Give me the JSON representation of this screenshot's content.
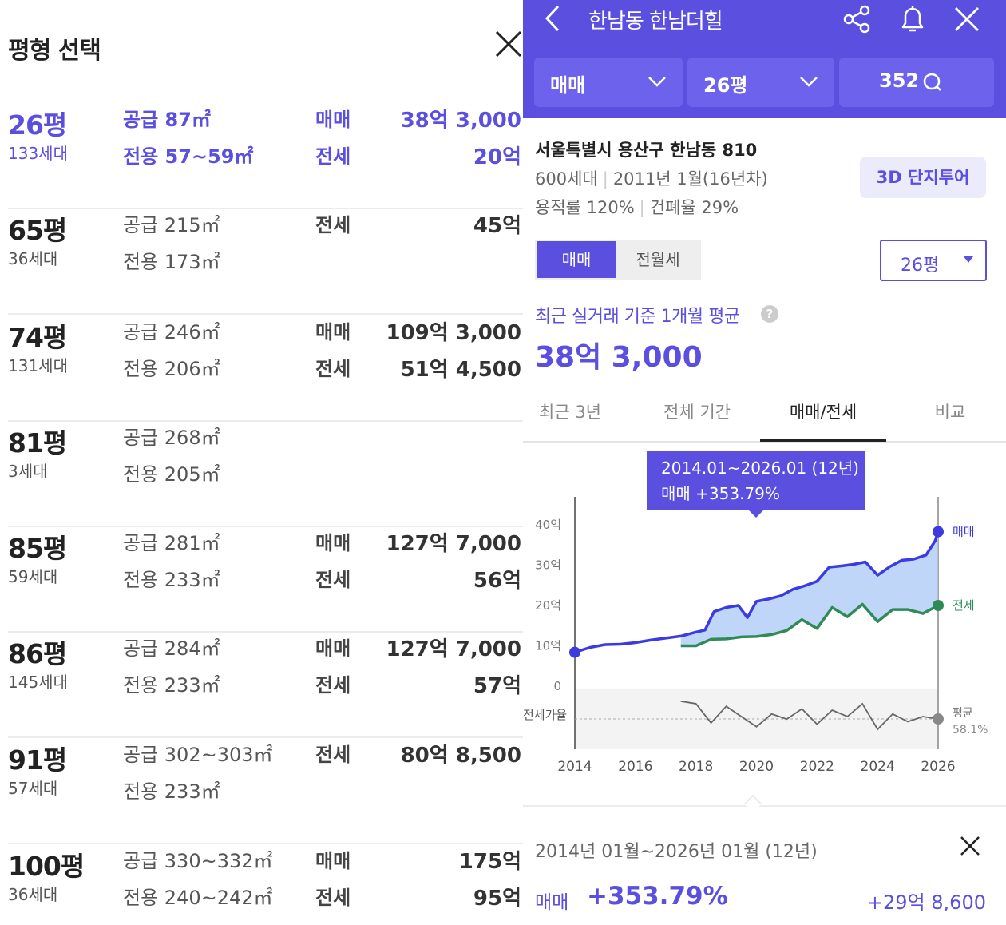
{
  "left_panel": {
    "title": "평형 선택",
    "rows": [
      {
        "pyeong": "26평",
        "households": "133세대",
        "supply": "공급 87㎡",
        "exclusive": "전용 57~59㎡",
        "label1": "매매",
        "value1": "38억 3,000",
        "label2": "전세",
        "value2": "20억",
        "selected": true
      },
      {
        "pyeong": "65평",
        "households": "36세대",
        "supply": "공급 215㎡",
        "exclusive": "전용 173㎡",
        "label1": "전세",
        "value1": "45억",
        "label2": "",
        "value2": "",
        "selected": false
      },
      {
        "pyeong": "74평",
        "households": "131세대",
        "supply": "공급 246㎡",
        "exclusive": "전용 206㎡",
        "label1": "매매",
        "value1": "109억 3,000",
        "label2": "전세",
        "value2": "51억 4,500",
        "selected": false
      },
      {
        "pyeong": "81평",
        "households": "3세대",
        "supply": "공급 268㎡",
        "exclusive": "전용 205㎡",
        "label1": "",
        "value1": "",
        "label2": "",
        "value2": "",
        "selected": false
      },
      {
        "pyeong": "85평",
        "households": "59세대",
        "supply": "공급 281㎡",
        "exclusive": "전용 233㎡",
        "label1": "매매",
        "value1": "127억 7,000",
        "label2": "전세",
        "value2": "56억",
        "selected": false
      },
      {
        "pyeong": "86평",
        "households": "145세대",
        "supply": "공급 284㎡",
        "exclusive": "전용 233㎡",
        "label1": "매매",
        "value1": "127억 7,000",
        "label2": "전세",
        "value2": "57억",
        "selected": false
      },
      {
        "pyeong": "91평",
        "households": "57세대",
        "supply": "공급 302~303㎡",
        "exclusive": "전용 233㎡",
        "label1": "전세",
        "value1": "80억 8,500",
        "label2": "",
        "value2": "",
        "selected": false
      },
      {
        "pyeong": "100평",
        "households": "36세대",
        "supply": "공급 330~332㎡",
        "exclusive": "전용 240~242㎡",
        "label1": "매매",
        "value1": "175억",
        "label2": "전세",
        "value2": "95억",
        "selected": false
      }
    ]
  },
  "right_panel": {
    "header": {
      "title": "한남동 한남더힐",
      "icons": [
        "back-icon",
        "share-icon",
        "bell-icon",
        "close-icon"
      ]
    },
    "chips": {
      "trade": "매매",
      "pyeong": "26평",
      "comments": "352"
    },
    "info": {
      "address": "서울특별시 용산구 한남동 810",
      "households": "600세대",
      "built": "2011년 1월(16년차)",
      "far": "용적률 120%",
      "bcr": "건폐율 29%",
      "tour_button": "3D 단지투어"
    },
    "segment": {
      "on": "매매",
      "off": "전월세"
    },
    "pyeong_select": "26평",
    "avg_label": "최근 실거래 기준 1개월 평균",
    "avg_value": "38억 3,000",
    "tabs": [
      "최근 3년",
      "전체 기간",
      "매매/전세",
      "비교"
    ],
    "tooltip": {
      "line1": "2014.01~2026.01 (12년)",
      "line2": "매매 +353.79%"
    },
    "summary": {
      "period": "2014년 01월~2026년 01월 (12년)",
      "label": "매매",
      "pct": "+353.79%",
      "amount": "+29억 8,600"
    },
    "colors": {
      "accent": "#5b4fe0",
      "sale": "#3b3be0",
      "jeonse": "#2e8b57",
      "area": "#aac8f6"
    }
  },
  "chart_data": {
    "type": "line",
    "x_ticks": [
      "2014",
      "2016",
      "2018",
      "2020",
      "2022",
      "2024",
      "2026"
    ],
    "y_ticks": [
      "40억",
      "30억",
      "20억",
      "10억",
      "0"
    ],
    "ylim": [
      0,
      40
    ],
    "xlim": [
      2014,
      2026
    ],
    "series": [
      {
        "name": "매매",
        "x": [
          2014.0,
          2014.5,
          2015.0,
          2015.5,
          2016.0,
          2016.5,
          2017.0,
          2017.5,
          2018.0,
          2018.3,
          2018.6,
          2019.0,
          2019.4,
          2019.7,
          2020.0,
          2020.4,
          2020.8,
          2021.2,
          2021.6,
          2022.0,
          2022.4,
          2022.8,
          2023.2,
          2023.6,
          2024.0,
          2024.4,
          2024.8,
          2025.2,
          2025.6,
          2025.9,
          2026.0
        ],
        "values": [
          8.4,
          9.6,
          10.3,
          10.4,
          10.8,
          11.4,
          11.9,
          12.4,
          13.4,
          13.9,
          18.5,
          19.5,
          20.0,
          17.0,
          21.0,
          21.6,
          22.4,
          24.0,
          24.9,
          26.0,
          29.5,
          29.8,
          30.2,
          30.8,
          27.5,
          29.6,
          31.2,
          31.5,
          32.5,
          36.0,
          38.3
        ]
      },
      {
        "name": "전세",
        "x": [
          2017.5,
          2018.0,
          2018.5,
          2019.0,
          2019.5,
          2020.0,
          2020.5,
          2021.0,
          2021.5,
          2022.0,
          2022.5,
          2023.0,
          2023.5,
          2024.0,
          2024.5,
          2025.0,
          2025.5,
          2026.0
        ],
        "values": [
          10.0,
          10.0,
          11.6,
          11.7,
          12.2,
          12.3,
          12.8,
          13.8,
          16.5,
          14.3,
          19.5,
          17.2,
          20.3,
          16.0,
          19.0,
          19.0,
          18.0,
          20.0
        ]
      },
      {
        "name": "전세가율",
        "x": [
          2017.5,
          2018.0,
          2018.5,
          2019.0,
          2019.5,
          2020.0,
          2020.5,
          2021.0,
          2021.5,
          2022.0,
          2022.5,
          2023.0,
          2023.5,
          2024.0,
          2024.5,
          2025.0,
          2025.5,
          2026.0
        ],
        "values": [
          72,
          70,
          55,
          68,
          60,
          52,
          62,
          58,
          66,
          54,
          65,
          60,
          70,
          50,
          62,
          56,
          60,
          58.1
        ]
      }
    ],
    "end_labels": {
      "sale": "매매",
      "jeonse": "전세",
      "ratio": "평균",
      "ratio_value": "58.1%"
    },
    "ratio_label": "전세가율"
  }
}
